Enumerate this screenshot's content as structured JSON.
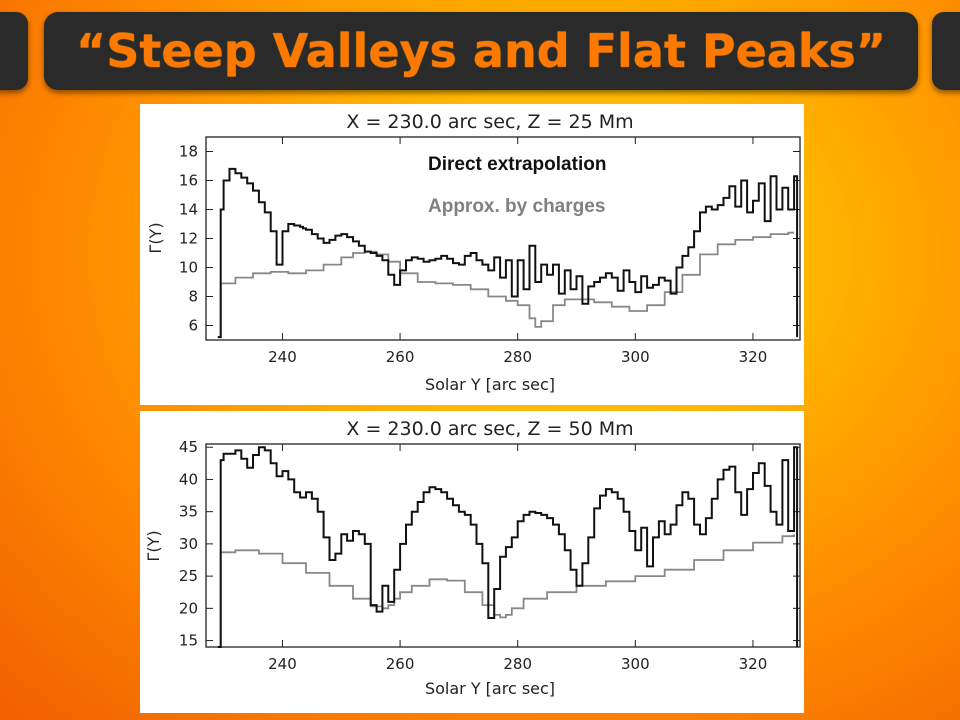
{
  "slide": {
    "title": "“Steep Valleys and Flat Peaks”"
  },
  "colors": {
    "title_text": "#ff7800",
    "title_bar": "#2a2a2a",
    "direct_series": "#111111",
    "approx_series": "#888888"
  },
  "chart_data": [
    {
      "type": "line",
      "title": "X = 230.0 arc sec,  Z = 25 Mm",
      "xlabel": "Solar Y [arc sec]",
      "ylabel": "Γ(Y)",
      "xlim": [
        227,
        328
      ],
      "ylim": [
        5,
        19
      ],
      "xticks": [
        240,
        260,
        280,
        300,
        320
      ],
      "yticks": [
        6,
        8,
        10,
        12,
        14,
        16,
        18
      ],
      "grid": false,
      "legend": {
        "placement": "top-center",
        "entries": [
          "Direct extrapolation",
          "Approx. by charges"
        ]
      },
      "series": [
        {
          "name": "Direct extrapolation",
          "color": "#111111",
          "x": [
            229,
            229.5,
            230,
            231,
            232,
            233,
            234,
            235,
            236,
            237,
            238,
            239,
            240,
            241,
            242,
            243,
            243.5,
            244,
            245,
            246,
            247,
            248,
            249,
            250,
            251,
            252,
            253,
            254,
            255,
            256,
            257,
            258,
            259,
            260,
            261,
            262,
            263,
            264,
            265,
            266,
            267,
            268,
            269,
            270,
            271,
            272,
            273,
            274,
            275,
            276,
            277,
            278,
            279,
            280,
            281,
            282,
            283,
            284,
            285,
            286,
            287,
            288,
            289,
            290,
            291,
            292,
            293,
            294,
            295,
            296,
            297,
            298,
            299,
            300,
            301,
            302,
            303,
            304,
            305,
            306,
            307,
            308,
            309,
            310,
            311,
            312,
            313,
            314,
            315,
            316,
            317,
            318,
            319,
            320,
            321,
            322,
            323,
            324,
            325,
            326,
            327,
            327.5
          ],
          "y": [
            5.2,
            14.0,
            16.0,
            16.8,
            16.5,
            16.2,
            15.8,
            15.3,
            14.5,
            13.8,
            12.5,
            10.2,
            12.5,
            13.0,
            12.9,
            12.8,
            12.7,
            12.6,
            12.3,
            12.0,
            11.7,
            11.9,
            12.2,
            12.3,
            12.1,
            11.8,
            11.5,
            11.1,
            11.0,
            10.8,
            10.5,
            9.5,
            8.8,
            9.8,
            10.5,
            10.7,
            10.6,
            10.4,
            10.5,
            10.6,
            10.8,
            10.6,
            10.3,
            10.2,
            10.8,
            11.0,
            10.5,
            10.2,
            9.8,
            10.7,
            9.3,
            10.5,
            8.0,
            10.5,
            8.5,
            11.5,
            9.0,
            10.2,
            9.5,
            10.2,
            8.2,
            9.8,
            8.5,
            9.4,
            7.5,
            8.7,
            9.0,
            9.3,
            9.6,
            9.3,
            8.4,
            9.8,
            9.0,
            8.3,
            9.4,
            8.6,
            8.8,
            9.3,
            9.1,
            8.2,
            10.0,
            10.8,
            11.4,
            12.5,
            13.8,
            14.2,
            14.0,
            14.3,
            14.8,
            15.6,
            14.2,
            16.0,
            13.8,
            14.6,
            15.8,
            13.2,
            16.3,
            14.0,
            15.5,
            14.0,
            16.3,
            5.2
          ]
        },
        {
          "name": "Approx. by charges",
          "color": "#888888",
          "x": [
            229,
            229.5,
            232,
            235,
            238,
            241,
            244,
            247,
            250,
            252,
            254,
            256,
            258,
            260,
            263,
            266,
            269,
            272,
            275,
            278,
            280,
            282,
            283,
            284,
            286,
            288,
            290,
            293,
            296,
            299,
            302,
            305,
            308,
            311,
            314,
            317,
            320,
            323,
            326,
            327
          ],
          "y": [
            5.2,
            8.9,
            9.3,
            9.6,
            9.7,
            9.6,
            9.8,
            10.2,
            10.7,
            11.0,
            11.1,
            10.9,
            10.4,
            9.6,
            9.0,
            8.9,
            8.8,
            8.5,
            8.0,
            7.7,
            7.4,
            6.5,
            5.9,
            6.3,
            7.4,
            7.8,
            7.8,
            7.6,
            7.3,
            7.0,
            7.4,
            8.3,
            9.5,
            10.9,
            11.6,
            11.9,
            12.1,
            12.3,
            12.4,
            12.4
          ]
        }
      ]
    },
    {
      "type": "line",
      "title": "X = 230.0 arc sec,  Z = 50 Mm",
      "xlabel": "Solar Y [arc sec]",
      "ylabel": "Γ(Y)",
      "xlim": [
        227,
        328
      ],
      "ylim": [
        14,
        45.5
      ],
      "xticks": [
        240,
        260,
        280,
        300,
        320
      ],
      "yticks": [
        15,
        20,
        25,
        30,
        35,
        40,
        45
      ],
      "grid": false,
      "series": [
        {
          "name": "Direct extrapolation",
          "color": "#111111",
          "x": [
            229,
            229.5,
            230,
            232,
            233,
            234,
            235,
            236,
            237,
            238,
            239,
            240,
            241,
            242,
            243,
            244,
            245,
            246,
            247,
            248,
            249,
            250,
            251,
            252,
            253,
            254,
            255,
            256,
            257,
            258,
            259,
            260,
            261,
            262,
            263,
            264,
            265,
            266,
            267,
            268,
            269,
            270,
            271,
            272,
            273,
            274,
            275,
            276,
            277,
            278,
            279,
            280,
            281,
            282,
            283,
            284,
            285,
            286,
            287,
            288,
            289,
            290,
            291,
            292,
            293,
            294,
            295,
            296,
            297,
            298,
            299,
            300,
            301,
            302,
            303,
            304,
            305,
            306,
            307,
            308,
            309,
            310,
            311,
            312,
            313,
            314,
            315,
            316,
            317,
            318,
            319,
            320,
            321,
            322,
            323,
            324,
            325,
            326,
            327,
            327.5
          ],
          "y": [
            14,
            43.0,
            44.0,
            44.5,
            43.2,
            41.8,
            43.8,
            45.0,
            44.5,
            42.5,
            40.5,
            41.3,
            40.0,
            38.0,
            37.2,
            38.0,
            37.0,
            35.0,
            31.0,
            27.5,
            28.5,
            31.5,
            30.5,
            32.0,
            31.5,
            30.0,
            20.5,
            19.5,
            23.5,
            21.0,
            26.0,
            30.0,
            33.0,
            35.0,
            36.5,
            38.0,
            38.8,
            38.5,
            38.0,
            37.0,
            36.0,
            35.0,
            34.5,
            33.0,
            30.0,
            27.0,
            18.5,
            23.0,
            28.0,
            29.5,
            31.0,
            33.5,
            34.5,
            35.0,
            34.8,
            34.5,
            34.0,
            33.0,
            31.5,
            29.0,
            26.0,
            23.5,
            27.0,
            31.0,
            35.5,
            37.5,
            38.5,
            38.0,
            37.0,
            35.0,
            32.0,
            29.0,
            32.5,
            26.5,
            31.0,
            33.5,
            31.5,
            33.0,
            36.0,
            38.0,
            37.0,
            33.0,
            31.5,
            34.0,
            37.0,
            40.0,
            41.5,
            42.0,
            38.0,
            34.5,
            38.5,
            41.0,
            42.5,
            39.0,
            35.0,
            33.0,
            43.0,
            32.0,
            45.0,
            14
          ]
        },
        {
          "name": "Approx. by charges",
          "color": "#888888",
          "x": [
            229,
            229.5,
            232,
            236,
            240,
            244,
            248,
            252,
            255,
            257,
            258,
            259,
            260,
            262,
            265,
            268,
            271,
            274,
            276,
            277,
            278,
            279,
            281,
            285,
            290,
            295,
            300,
            305,
            310,
            315,
            320,
            325,
            327
          ],
          "y": [
            14,
            28.7,
            29.0,
            28.5,
            27.0,
            25.5,
            23.5,
            21.5,
            20.3,
            20.0,
            20.5,
            21.5,
            22.5,
            23.5,
            24.5,
            24.3,
            22.5,
            20.5,
            19.0,
            18.6,
            19.0,
            20.0,
            21.5,
            22.5,
            23.5,
            24.2,
            25.0,
            26.0,
            27.5,
            29.0,
            30.2,
            31.2,
            31.5
          ]
        }
      ]
    }
  ]
}
